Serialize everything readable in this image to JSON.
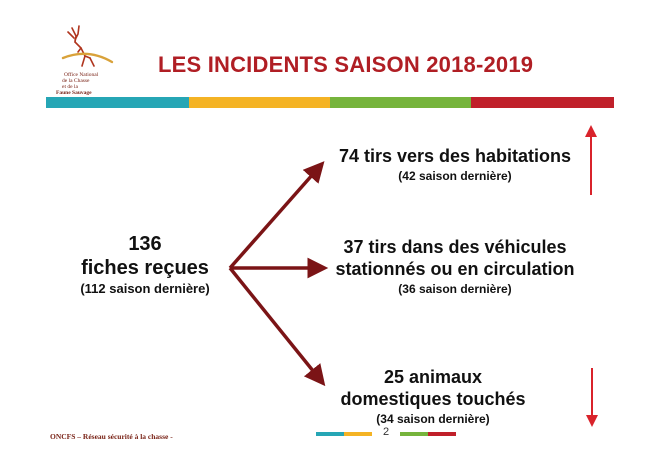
{
  "logo": {
    "icon": "deer-icon",
    "lines": [
      "Office National",
      "de la Chasse",
      "et de la",
      "Faune Sauvage"
    ]
  },
  "title": "LES INCIDENTS SAISON 2018-2019",
  "colors": {
    "title": "#b01e24",
    "arrow": "#7b1416",
    "trend_arrow": "#d9232b",
    "bar": [
      "#26a6b5",
      "#f4b324",
      "#76b43c",
      "#c0202a"
    ]
  },
  "left": {
    "count": "136",
    "label": "fiches reçues",
    "previous": "(112 saison dernière)"
  },
  "items": [
    {
      "main": [
        "74 tirs vers des habitations"
      ],
      "previous": "(42 saison dernière)",
      "trend": "up"
    },
    {
      "main": [
        "37 tirs dans des véhicules",
        "stationnés ou en circulation"
      ],
      "previous": "(36 saison dernière)",
      "trend": "none"
    },
    {
      "main": [
        "25 animaux",
        "domestiques touchés"
      ],
      "previous": "(34 saison dernière)",
      "trend": "down"
    }
  ],
  "footer": "ONCFS – Réseau sécurité à la chasse -",
  "page_number": "2"
}
